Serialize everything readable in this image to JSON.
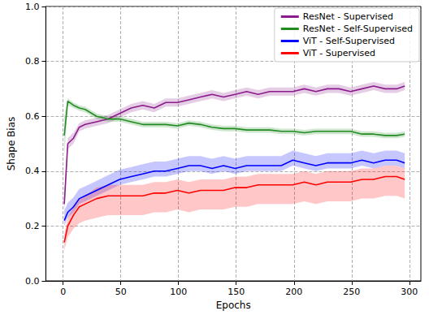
{
  "chart_data": {
    "type": "line",
    "x_label": "Epochs",
    "y_label": "Shape Bias",
    "x": [
      1,
      4,
      9,
      14,
      19,
      29,
      39,
      49,
      59,
      69,
      79,
      89,
      99,
      109,
      119,
      129,
      139,
      149,
      159,
      169,
      179,
      189,
      199,
      209,
      219,
      229,
      239,
      249,
      259,
      269,
      279,
      289,
      296
    ],
    "series": [
      {
        "name": "ResNet - Supervised",
        "color": "#8b1a8b",
        "values": [
          0.28,
          0.5,
          0.52,
          0.56,
          0.57,
          0.58,
          0.59,
          0.61,
          0.63,
          0.64,
          0.63,
          0.65,
          0.65,
          0.66,
          0.67,
          0.68,
          0.67,
          0.68,
          0.69,
          0.68,
          0.69,
          0.69,
          0.69,
          0.7,
          0.69,
          0.7,
          0.7,
          0.69,
          0.7,
          0.71,
          0.7,
          0.7,
          0.71
        ],
        "lower": [
          0.24,
          0.48,
          0.5,
          0.545,
          0.555,
          0.565,
          0.575,
          0.595,
          0.615,
          0.625,
          0.615,
          0.635,
          0.635,
          0.645,
          0.655,
          0.665,
          0.655,
          0.665,
          0.675,
          0.665,
          0.675,
          0.675,
          0.675,
          0.685,
          0.675,
          0.685,
          0.685,
          0.675,
          0.685,
          0.695,
          0.685,
          0.685,
          0.695
        ],
        "upper": [
          0.31,
          0.52,
          0.54,
          0.575,
          0.585,
          0.595,
          0.605,
          0.625,
          0.645,
          0.655,
          0.645,
          0.665,
          0.665,
          0.675,
          0.685,
          0.695,
          0.685,
          0.695,
          0.705,
          0.695,
          0.705,
          0.705,
          0.705,
          0.715,
          0.705,
          0.715,
          0.715,
          0.705,
          0.715,
          0.725,
          0.715,
          0.715,
          0.725
        ]
      },
      {
        "name": "ResNet - Self-Supervised",
        "color": "#228b22",
        "values": [
          0.53,
          0.655,
          0.64,
          0.63,
          0.625,
          0.6,
          0.59,
          0.59,
          0.58,
          0.57,
          0.57,
          0.57,
          0.565,
          0.575,
          0.57,
          0.56,
          0.555,
          0.555,
          0.55,
          0.55,
          0.55,
          0.545,
          0.545,
          0.54,
          0.545,
          0.545,
          0.545,
          0.545,
          0.535,
          0.535,
          0.53,
          0.53,
          0.535
        ],
        "lower": [
          0.45,
          0.64,
          0.63,
          0.62,
          0.615,
          0.59,
          0.58,
          0.58,
          0.57,
          0.56,
          0.56,
          0.56,
          0.555,
          0.565,
          0.56,
          0.55,
          0.545,
          0.545,
          0.54,
          0.54,
          0.54,
          0.535,
          0.535,
          0.53,
          0.535,
          0.535,
          0.535,
          0.535,
          0.525,
          0.525,
          0.52,
          0.52,
          0.525
        ],
        "upper": [
          0.6,
          0.665,
          0.65,
          0.64,
          0.635,
          0.61,
          0.6,
          0.6,
          0.59,
          0.58,
          0.58,
          0.58,
          0.575,
          0.585,
          0.58,
          0.57,
          0.565,
          0.565,
          0.56,
          0.56,
          0.56,
          0.555,
          0.555,
          0.55,
          0.555,
          0.555,
          0.555,
          0.555,
          0.545,
          0.545,
          0.54,
          0.54,
          0.545
        ]
      },
      {
        "name": "ViT - Self-Supervised",
        "color": "#0000ff",
        "values": [
          0.22,
          0.25,
          0.27,
          0.3,
          0.31,
          0.33,
          0.35,
          0.37,
          0.38,
          0.39,
          0.4,
          0.4,
          0.41,
          0.42,
          0.42,
          0.41,
          0.42,
          0.41,
          0.42,
          0.42,
          0.42,
          0.42,
          0.44,
          0.43,
          0.42,
          0.43,
          0.43,
          0.43,
          0.44,
          0.43,
          0.44,
          0.44,
          0.43
        ],
        "lower": [
          0.2,
          0.23,
          0.25,
          0.28,
          0.29,
          0.31,
          0.33,
          0.35,
          0.36,
          0.37,
          0.38,
          0.38,
          0.39,
          0.4,
          0.4,
          0.39,
          0.4,
          0.39,
          0.4,
          0.4,
          0.4,
          0.4,
          0.42,
          0.41,
          0.4,
          0.41,
          0.41,
          0.41,
          0.42,
          0.41,
          0.42,
          0.42,
          0.41
        ],
        "upper": [
          0.255,
          0.285,
          0.305,
          0.335,
          0.345,
          0.365,
          0.385,
          0.405,
          0.415,
          0.425,
          0.435,
          0.435,
          0.445,
          0.455,
          0.455,
          0.445,
          0.455,
          0.445,
          0.455,
          0.455,
          0.455,
          0.455,
          0.475,
          0.465,
          0.455,
          0.465,
          0.465,
          0.465,
          0.475,
          0.465,
          0.475,
          0.475,
          0.465
        ]
      },
      {
        "name": "ViT - Supervised",
        "color": "#ff0000",
        "values": [
          0.14,
          0.2,
          0.24,
          0.27,
          0.28,
          0.3,
          0.31,
          0.31,
          0.31,
          0.31,
          0.32,
          0.32,
          0.33,
          0.32,
          0.33,
          0.33,
          0.33,
          0.34,
          0.34,
          0.35,
          0.35,
          0.35,
          0.35,
          0.36,
          0.35,
          0.36,
          0.36,
          0.36,
          0.37,
          0.37,
          0.38,
          0.38,
          0.37
        ],
        "lower": [
          0.11,
          0.16,
          0.19,
          0.21,
          0.22,
          0.23,
          0.24,
          0.24,
          0.24,
          0.24,
          0.25,
          0.25,
          0.26,
          0.25,
          0.26,
          0.26,
          0.26,
          0.27,
          0.27,
          0.28,
          0.28,
          0.28,
          0.28,
          0.29,
          0.28,
          0.29,
          0.29,
          0.29,
          0.3,
          0.3,
          0.31,
          0.31,
          0.3
        ],
        "upper": [
          0.17,
          0.23,
          0.27,
          0.3,
          0.31,
          0.34,
          0.35,
          0.35,
          0.35,
          0.35,
          0.36,
          0.36,
          0.37,
          0.36,
          0.37,
          0.37,
          0.37,
          0.38,
          0.38,
          0.39,
          0.39,
          0.39,
          0.39,
          0.4,
          0.39,
          0.4,
          0.4,
          0.4,
          0.41,
          0.41,
          0.42,
          0.42,
          0.41
        ]
      }
    ],
    "xlim": [
      -15,
      310
    ],
    "xticks": [
      0,
      50,
      100,
      150,
      200,
      250,
      300
    ],
    "ylim": [
      0,
      1
    ],
    "yticks": [
      {
        "value": 0,
        "label": "0.0"
      },
      {
        "value": 0.2,
        "label": "0.2"
      },
      {
        "value": 0.4,
        "label": "0.4"
      },
      {
        "value": 0.6,
        "label": "0.6"
      },
      {
        "value": 0.8,
        "label": "0.8"
      },
      {
        "value": 1,
        "label": "1.0"
      }
    ],
    "grid": true,
    "legend": "upper right"
  }
}
